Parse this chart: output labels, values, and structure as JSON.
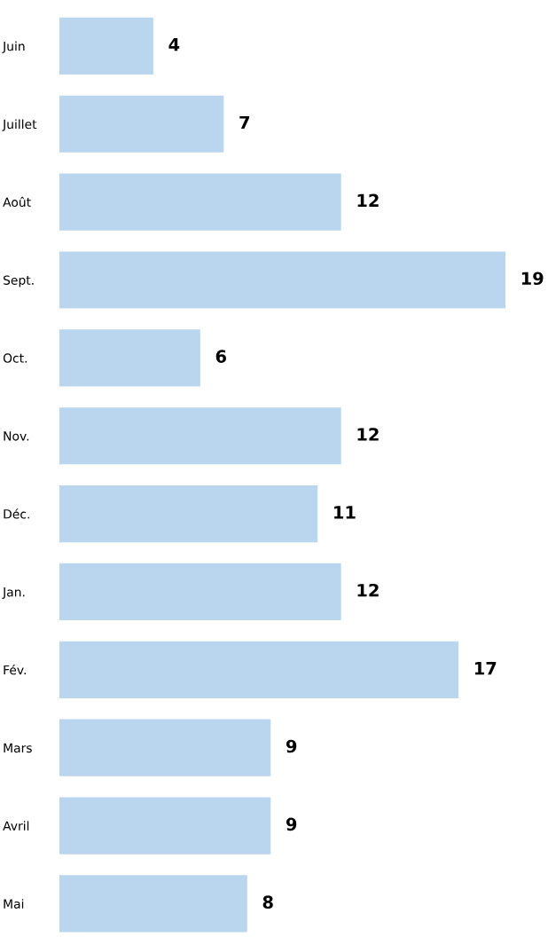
{
  "chart_data": {
    "type": "bar",
    "orientation": "horizontal",
    "categories": [
      "Juin",
      "Juillet",
      "Août",
      "Sept.",
      "Oct.",
      "Nov.",
      "Déc.",
      "Jan.",
      "Fév.",
      "Mars",
      "Avril",
      "Mai"
    ],
    "values": [
      4,
      7,
      12,
      19,
      6,
      12,
      11,
      12,
      17,
      9,
      9,
      8
    ],
    "color": "#bad6ef",
    "data_labels": true
  }
}
